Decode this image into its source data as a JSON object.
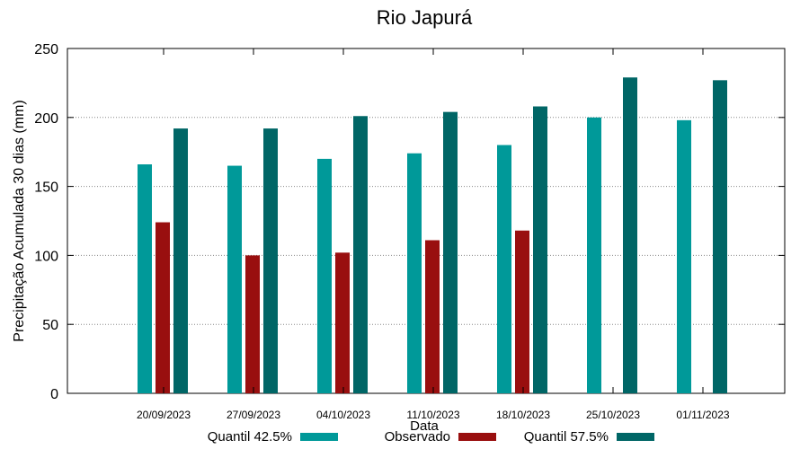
{
  "chart_data": {
    "type": "bar",
    "title": "Rio Japurá",
    "xlabel": "Data",
    "ylabel": "Precipitação Acumulada 30 dias (mm)",
    "ylim": [
      0,
      250
    ],
    "yticks": [
      0,
      50,
      100,
      150,
      200,
      250
    ],
    "grid": true,
    "legend_position": "bottom",
    "categories": [
      "20/09/2023",
      "27/09/2023",
      "04/10/2023",
      "11/10/2023",
      "18/10/2023",
      "25/10/2023",
      "01/11/2023"
    ],
    "series": [
      {
        "name": "Quantil 42.5%",
        "color": "#009999",
        "values": [
          166,
          165,
          170,
          174,
          180,
          200,
          198
        ]
      },
      {
        "name": "Observado",
        "color": "#990f0f",
        "values": [
          124,
          100,
          102,
          111,
          118,
          null,
          null
        ]
      },
      {
        "name": "Quantil 57.5%",
        "color": "#006666",
        "values": [
          192,
          192,
          201,
          204,
          208,
          229,
          227
        ]
      }
    ]
  }
}
